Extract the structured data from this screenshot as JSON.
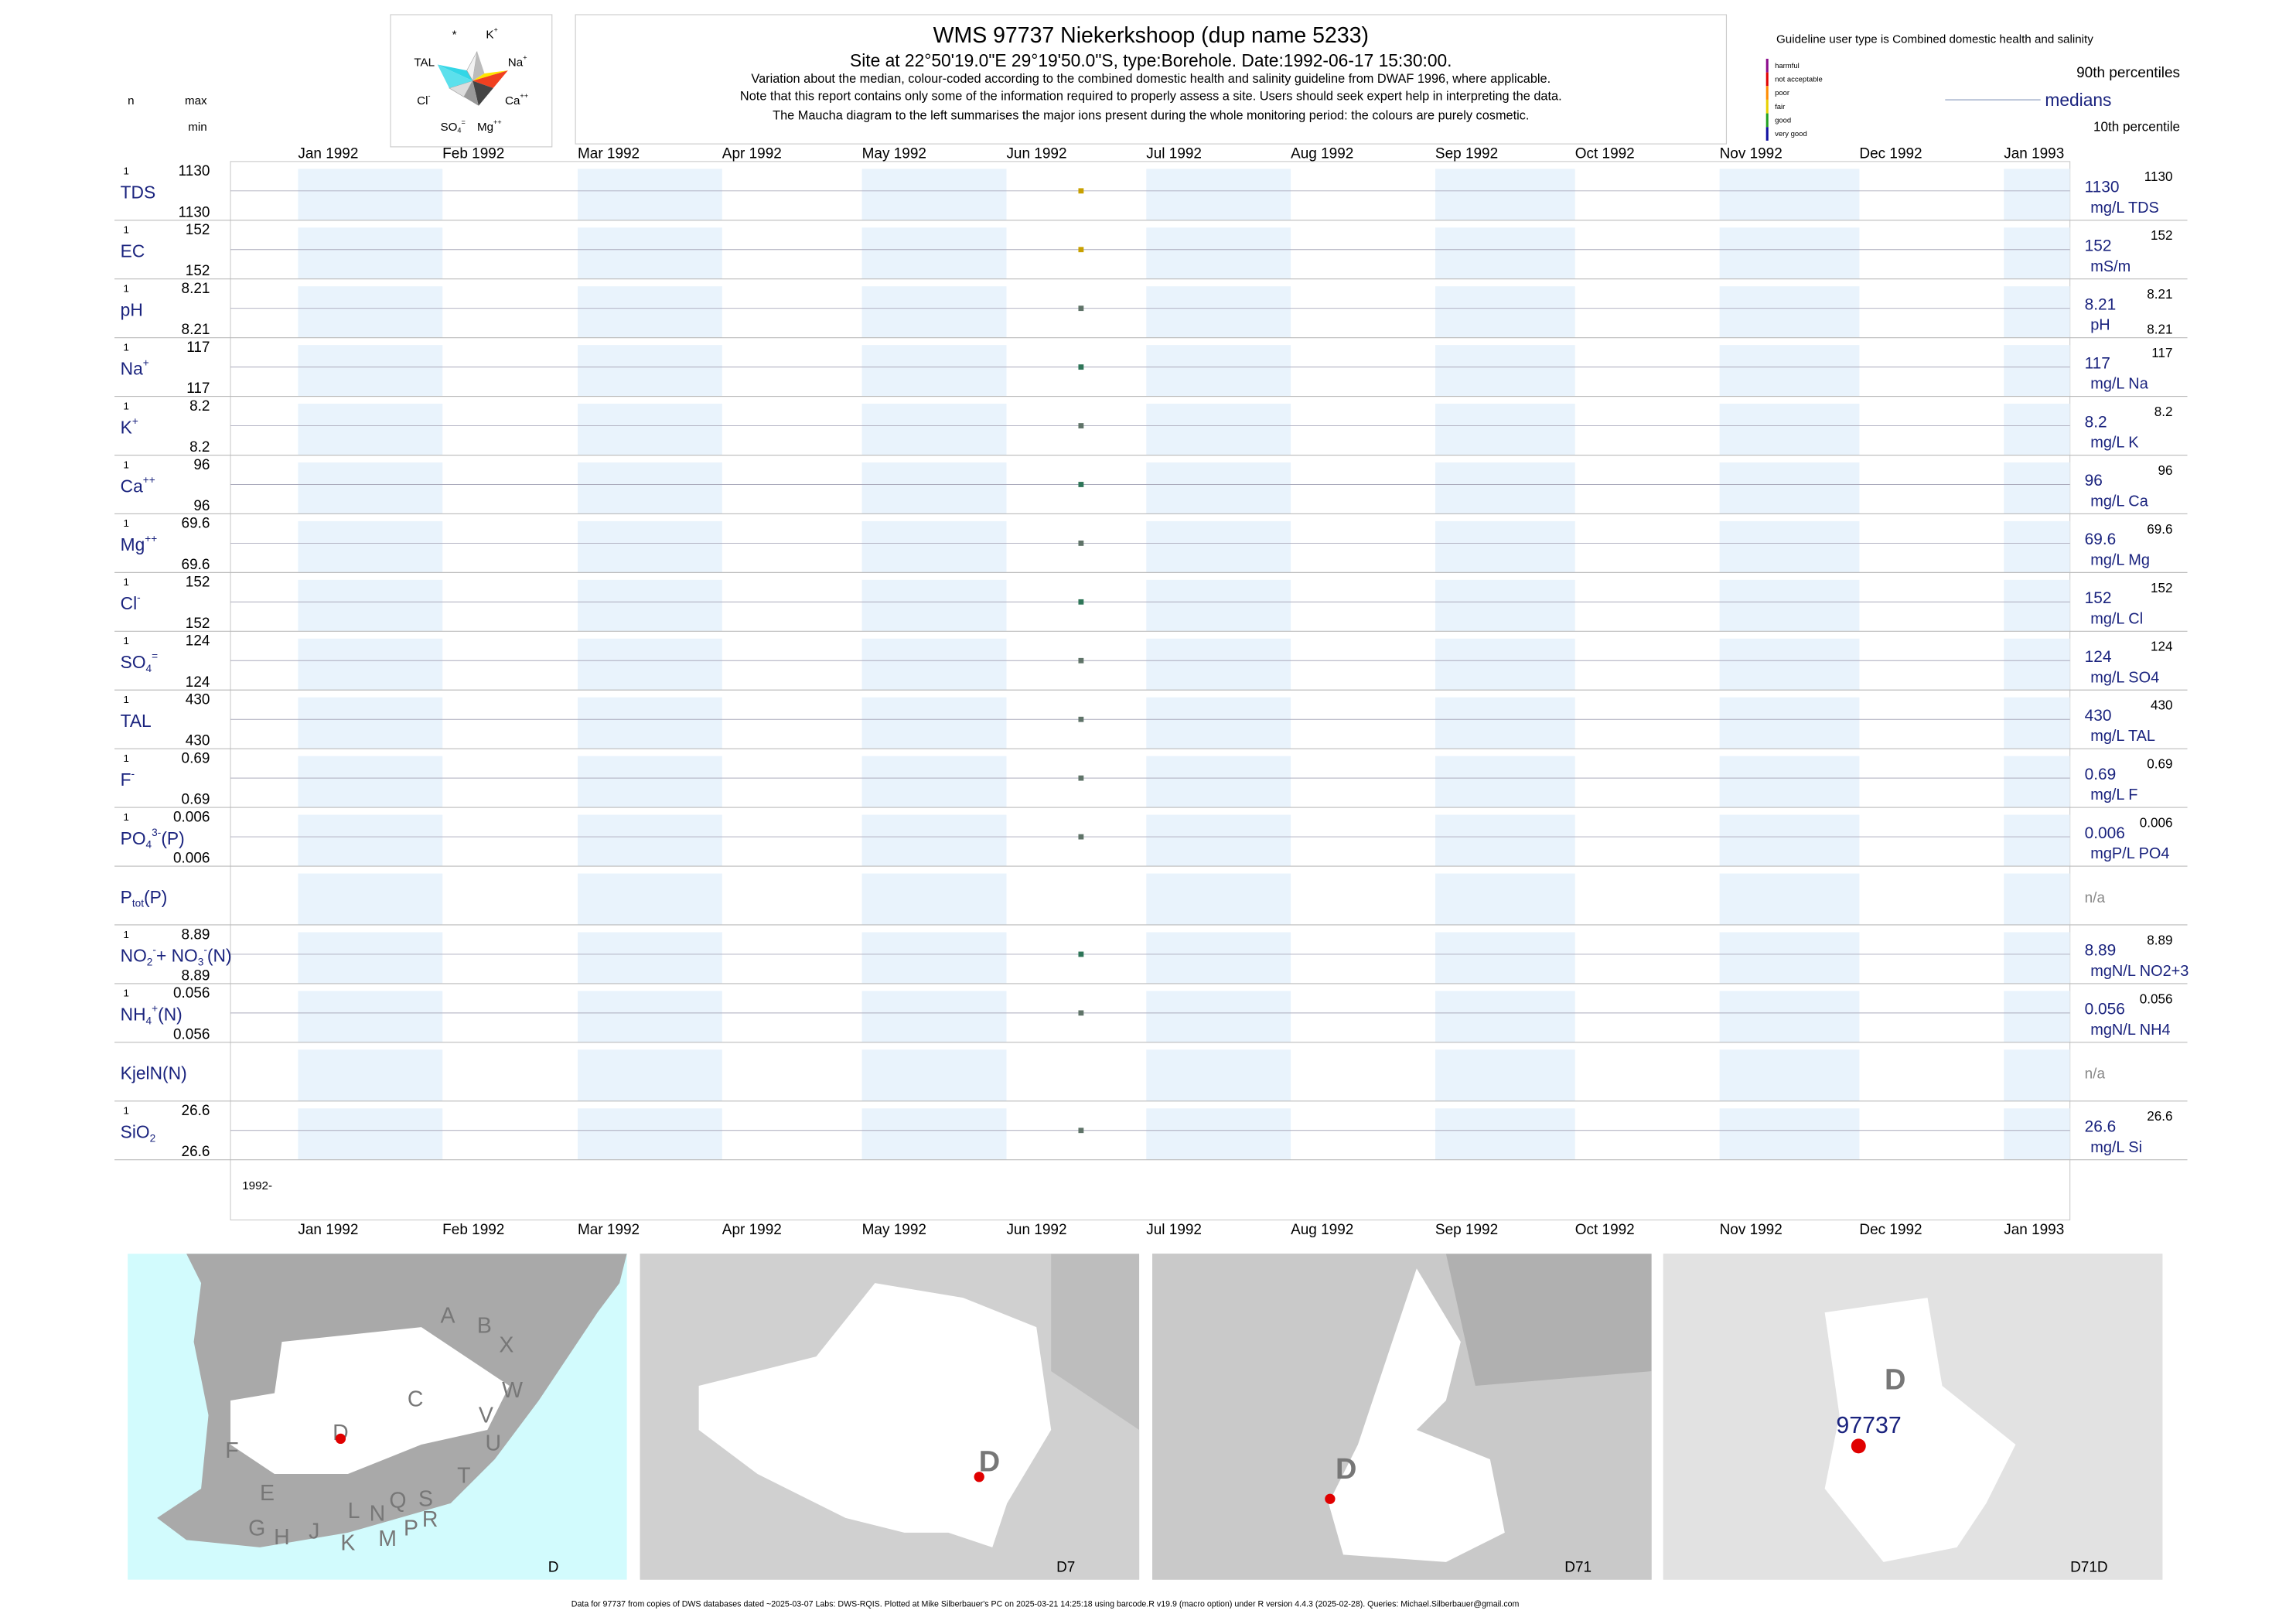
{
  "header": {
    "title": "WMS 97737  Niekerkshoop (dup name 5233)",
    "subtitle": "Site at 22°50'19.0\"E 29°19'50.0\"S, type:Borehole. Date:1992-06-17 15:30:00.",
    "notes": [
      "Variation about the median,  colour-coded according to the combined domestic health and salinity guideline from DWAF 1996, where applicable.",
      "Note that this report contains only some of the information required to properly assess a site. Users should seek expert help in interpreting the data.",
      "The Maucha diagram to the left summarises the major ions present during the whole monitoring period: the colours are purely cosmetic."
    ],
    "sample_date": "1992-06-17"
  },
  "maucha": [
    [
      {
        "text": "*",
        "pos": "base"
      }
    ],
    [
      {
        "text": "K",
        "pos": "base"
      },
      {
        "text": "+",
        "pos": "sup"
      }
    ],
    [
      {
        "text": "TAL",
        "pos": "base"
      }
    ],
    [
      {
        "text": "Na",
        "pos": "base"
      },
      {
        "text": "+",
        "pos": "sup"
      }
    ],
    [
      {
        "text": "Cl",
        "pos": "base"
      },
      {
        "text": "-",
        "pos": "sup"
      }
    ],
    [
      {
        "text": "Ca",
        "pos": "base"
      },
      {
        "text": "++",
        "pos": "sup"
      }
    ],
    [
      {
        "text": "SO",
        "pos": "base"
      },
      {
        "text": "4",
        "pos": "sub"
      },
      {
        "text": "=",
        "pos": "sup"
      }
    ],
    [
      {
        "text": "Mg",
        "pos": "base"
      },
      {
        "text": "++",
        "pos": "sup"
      }
    ]
  ],
  "legend": {
    "guideline": "Guideline user type is Combined domestic health and salinity",
    "classes": [
      {
        "name": "harmful",
        "color": "#8b0a8b"
      },
      {
        "name": "not acceptable",
        "color": "#e00000"
      },
      {
        "name": "poor",
        "color": "#ff8c00"
      },
      {
        "name": "fair",
        "color": "#e8d000"
      },
      {
        "name": "good",
        "color": "#20a020"
      },
      {
        "name": "very good",
        "color": "#1010a0"
      }
    ],
    "p90": "90th percentiles",
    "median": "medians",
    "p10": "10th percentile"
  },
  "column_heads": {
    "n": "n",
    "max": "max",
    "min": "min"
  },
  "months": [
    "Jan 1992",
    "Feb 1992",
    "Mar 1992",
    "Apr 1992",
    "May 1992",
    "Jun 1992",
    "Jul 1992",
    "Aug 1992",
    "Sep 1992",
    "Oct 1992",
    "Nov 1992",
    "Dec 1992",
    "Jan 1993"
  ],
  "year_label": "1992-",
  "rows": [
    {
      "label": [
        {
          "text": "TDS",
          "pos": "base"
        }
      ],
      "n": 1,
      "max": 1130,
      "min": 1130,
      "median": 1130,
      "unit": "mg/L TDS",
      "p90": 1130,
      "color": "#c8a000"
    },
    {
      "label": [
        {
          "text": "EC",
          "pos": "base"
        }
      ],
      "n": 1,
      "max": 152,
      "min": 152,
      "median": 152,
      "unit": "mS/m",
      "p90": 152,
      "color": "#c8a000"
    },
    {
      "label": [
        {
          "text": "pH",
          "pos": "base"
        }
      ],
      "n": 1,
      "max": 8.21,
      "min": 8.21,
      "median": 8.21,
      "unit": "pH",
      "p90": 8.21,
      "p10": 8.21,
      "color": "#5f7368"
    },
    {
      "label": [
        {
          "text": "Na",
          "pos": "base"
        },
        {
          "text": "+",
          "pos": "sup"
        }
      ],
      "n": 1,
      "max": 117,
      "min": 117,
      "median": 117,
      "unit": "mg/L Na",
      "p90": 117,
      "color": "#2e7558"
    },
    {
      "label": [
        {
          "text": "K",
          "pos": "base"
        },
        {
          "text": "+",
          "pos": "sup"
        }
      ],
      "n": 1,
      "max": 8.2,
      "min": 8.2,
      "median": 8.2,
      "unit": "mg/L K",
      "p90": 8.2,
      "color": "#5f7368"
    },
    {
      "label": [
        {
          "text": "Ca",
          "pos": "base"
        },
        {
          "text": "++",
          "pos": "sup"
        }
      ],
      "n": 1,
      "max": 96,
      "min": 96,
      "median": 96,
      "unit": "mg/L Ca",
      "p90": 96,
      "color": "#2e7558"
    },
    {
      "label": [
        {
          "text": "Mg",
          "pos": "base"
        },
        {
          "text": "++",
          "pos": "sup"
        }
      ],
      "n": 1,
      "max": 69.6,
      "min": 69.6,
      "median": 69.6,
      "unit": "mg/L Mg",
      "p90": 69.6,
      "color": "#5f7368"
    },
    {
      "label": [
        {
          "text": "Cl",
          "pos": "base"
        },
        {
          "text": "-",
          "pos": "sup"
        }
      ],
      "n": 1,
      "max": 152,
      "min": 152,
      "median": 152,
      "unit": "mg/L Cl",
      "p90": 152,
      "color": "#2e7558"
    },
    {
      "label": [
        {
          "text": "SO",
          "pos": "base"
        },
        {
          "text": "4",
          "pos": "sub"
        },
        {
          "text": "=",
          "pos": "sup"
        }
      ],
      "n": 1,
      "max": 124,
      "min": 124,
      "median": 124,
      "unit": "mg/L SO4",
      "p90": 124,
      "color": "#5f7368"
    },
    {
      "label": [
        {
          "text": "TAL",
          "pos": "base"
        }
      ],
      "n": 1,
      "max": 430,
      "min": 430,
      "median": 430,
      "unit": "mg/L TAL",
      "p90": 430,
      "color": "#5f7368"
    },
    {
      "label": [
        {
          "text": "F",
          "pos": "base"
        },
        {
          "text": "-",
          "pos": "sup"
        }
      ],
      "n": 1,
      "max": 0.69,
      "min": 0.69,
      "median": 0.69,
      "unit": "mg/L F",
      "p90": 0.69,
      "color": "#5f7368"
    },
    {
      "label": [
        {
          "text": "PO",
          "pos": "base"
        },
        {
          "text": "4",
          "pos": "sub"
        },
        {
          "text": "3-",
          "pos": "sup"
        },
        {
          "text": "(P)",
          "pos": "base"
        }
      ],
      "n": 1,
      "max": 0.006,
      "min": 0.006,
      "median": 0.006,
      "unit": "mgP/L PO4",
      "p90": 0.006,
      "color": "#5f7368"
    },
    {
      "label": [
        {
          "text": "P",
          "pos": "base"
        },
        {
          "text": "tot",
          "pos": "sub"
        },
        {
          "text": "(P)",
          "pos": "base"
        }
      ],
      "status": "n/a"
    },
    {
      "label": [
        {
          "text": "NO",
          "pos": "base"
        },
        {
          "text": "2",
          "pos": "sub"
        },
        {
          "text": "-",
          "pos": "sup"
        },
        {
          "text": "+ NO",
          "pos": "base"
        },
        {
          "text": "3",
          "pos": "sub"
        },
        {
          "text": "-",
          "pos": "sup"
        },
        {
          "text": "(N)",
          "pos": "base"
        }
      ],
      "n": 1,
      "max": 8.89,
      "min": 8.89,
      "median": 8.89,
      "unit": "mgN/L NO2+3",
      "p90": 8.89,
      "color": "#2e7558"
    },
    {
      "label": [
        {
          "text": "NH",
          "pos": "base"
        },
        {
          "text": "4",
          "pos": "sub"
        },
        {
          "text": "+",
          "pos": "sup"
        },
        {
          "text": "(N)",
          "pos": "base"
        }
      ],
      "n": 1,
      "max": 0.056,
      "min": 0.056,
      "median": 0.056,
      "unit": "mgN/L NH4",
      "p90": 0.056,
      "color": "#5f7368"
    },
    {
      "label": [
        {
          "text": "KjelN(N)",
          "pos": "base"
        }
      ],
      "status": "n/a"
    },
    {
      "label": [
        {
          "text": "SiO",
          "pos": "base"
        },
        {
          "text": "2",
          "pos": "sub"
        }
      ],
      "n": 1,
      "max": 26.6,
      "min": 26.6,
      "median": 26.6,
      "unit": "mg/L Si",
      "p90": 26.6,
      "color": "#5f7368"
    }
  ],
  "maps": [
    {
      "caption": "D",
      "labels": [
        "A",
        "B",
        "X",
        "C",
        "W",
        "V",
        "U",
        "T",
        "D",
        "F",
        "E",
        "G",
        "H",
        "J",
        "K",
        "L",
        "N",
        "M",
        "Q",
        "P",
        "S",
        "R"
      ]
    },
    {
      "caption": "D7",
      "labels": [
        "D"
      ]
    },
    {
      "caption": "D71",
      "labels": [
        "D"
      ]
    },
    {
      "caption": "D71D",
      "labels": [
        "D",
        "97737"
      ]
    }
  ],
  "footer": "Data for 97737 from copies of DWS databases dated ~2025-03-07 Labs: DWS-RQIS. Plotted at Mike Silberbauer's PC on 2025-03-21 14:25:18 using barcode.R v19.9 (macro option) under R version 4.4.3 (2025-02-28). Queries: Michael.Silberbauer@gmail.com"
}
